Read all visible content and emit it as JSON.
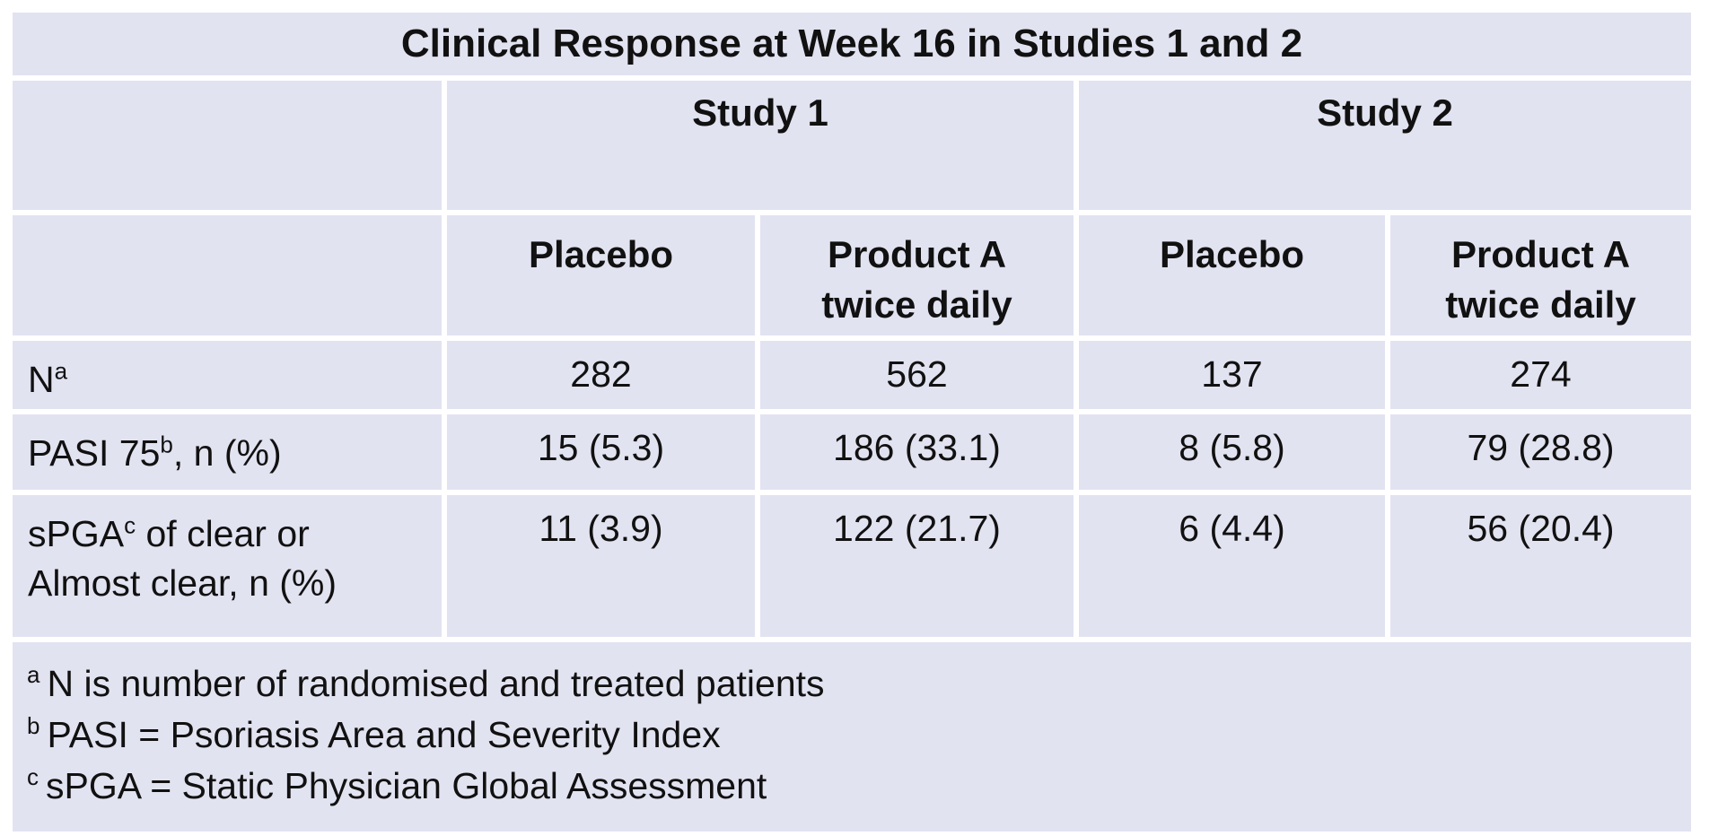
{
  "title": "Clinical Response at Week 16 in Studies 1 and 2",
  "colors": {
    "cell_background": "#e2e3f1",
    "border": "#ffffff",
    "text": "#111111"
  },
  "table": {
    "study_headers": [
      {
        "label": "Study 1"
      },
      {
        "label": "Study 2"
      }
    ],
    "arm_headers": [
      {
        "line1": "Placebo",
        "line2": ""
      },
      {
        "line1": "Product A",
        "line2": "twice daily"
      },
      {
        "line1": "Placebo",
        "line2": ""
      },
      {
        "line1": "Product A",
        "line2": "twice daily"
      }
    ],
    "rows": [
      {
        "label_pre": "N",
        "label_sup": "a",
        "label_post": "",
        "label_line2": "",
        "values": [
          "282",
          "562",
          "137",
          "274"
        ]
      },
      {
        "label_pre": "PASI 75",
        "label_sup": "b",
        "label_post": ", n (%)",
        "label_line2": "",
        "values": [
          "15 (5.3)",
          "186 (33.1)",
          "8 (5.8)",
          "79 (28.8)"
        ]
      },
      {
        "label_pre": "sPGA",
        "label_sup": "c",
        "label_post": " of clear or",
        "label_line2": "Almost clear, n (%)",
        "values": [
          "11 (3.9)",
          "122 (21.7)",
          "6 (4.4)",
          "56 (20.4)"
        ]
      }
    ]
  },
  "footnotes": [
    {
      "sup": "a",
      "text": "N is number of randomised and treated patients"
    },
    {
      "sup": "b",
      "text": "PASI = Psoriasis Area and Severity Index"
    },
    {
      "sup": "c",
      "text": "sPGA = Static Physician Global Assessment"
    }
  ]
}
